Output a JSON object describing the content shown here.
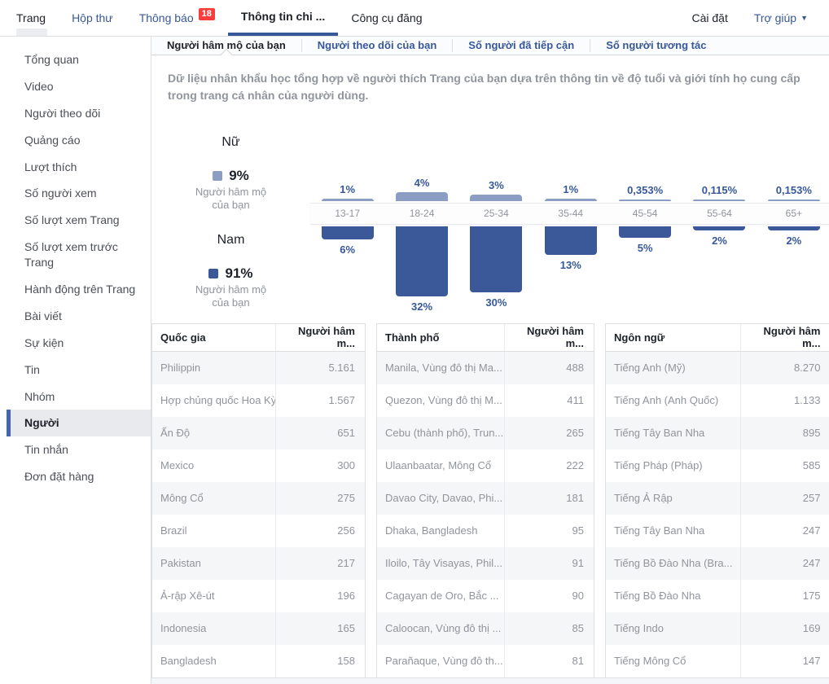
{
  "colors": {
    "accent": "#365899",
    "female_bar": "#8b9dc3",
    "male_bar": "#3b5998",
    "badge_red": "#fa3e3e",
    "active_sidebar_border": "#4267b2"
  },
  "top_nav": {
    "items": [
      {
        "id": "trang",
        "label": "Trang",
        "dark": true
      },
      {
        "id": "hop-thu",
        "label": "Hộp thư"
      },
      {
        "id": "thong-bao",
        "label": "Thông báo",
        "badge": "18"
      },
      {
        "id": "thong-tin-chi-tiet",
        "label": "Thông tin chi ...",
        "active": true
      },
      {
        "id": "cong-cu-dang",
        "label": "Công cụ đăng",
        "dark": true
      }
    ],
    "right": [
      {
        "id": "cai-dat",
        "label": "Cài đặt",
        "dark": true
      },
      {
        "id": "tro-giup",
        "label": "Trợ giúp",
        "caret": true
      }
    ]
  },
  "sidebar": {
    "items": [
      {
        "id": "tong-quan",
        "label": "Tổng quan"
      },
      {
        "id": "video",
        "label": "Video"
      },
      {
        "id": "nguoi-theo-doi",
        "label": "Người theo dõi"
      },
      {
        "id": "quang-cao",
        "label": "Quảng cáo"
      },
      {
        "id": "luot-thich",
        "label": "Lượt thích"
      },
      {
        "id": "so-nguoi-xem",
        "label": "Số người xem"
      },
      {
        "id": "so-luot-xem-trang",
        "label": "Số lượt xem Trang"
      },
      {
        "id": "so-luot-xem-truoc-trang",
        "label": "Số lượt xem trước Trang"
      },
      {
        "id": "hanh-dong-tren-trang",
        "label": "Hành động trên Trang"
      },
      {
        "id": "bai-viet",
        "label": "Bài viết"
      },
      {
        "id": "su-kien",
        "label": "Sự kiện"
      },
      {
        "id": "tin",
        "label": "Tin"
      },
      {
        "id": "nhom",
        "label": "Nhóm"
      },
      {
        "id": "nguoi",
        "label": "Người",
        "active": true
      },
      {
        "id": "tin-nhan",
        "label": "Tin nhắn"
      },
      {
        "id": "don-dat-hang",
        "label": "Đơn đặt hàng"
      }
    ]
  },
  "main_tabs": [
    {
      "id": "nguoi-ham-mo",
      "label": "Người hâm mộ của bạn",
      "active": true
    },
    {
      "id": "nguoi-theo-doi",
      "label": "Người theo dõi của bạn"
    },
    {
      "id": "da-tiep-can",
      "label": "Số người đã tiếp cận"
    },
    {
      "id": "tuong-tac",
      "label": "Số người tương tác"
    }
  ],
  "description": "Dữ liệu nhân khẩu học tổng hợp về người thích Trang của bạn dựa trên thông tin về độ tuổi và giới tính họ cung cấp trong trang cá nhân của người dùng.",
  "chart_data": {
    "type": "bar",
    "title": "",
    "categories": [
      "13-17",
      "18-24",
      "25-34",
      "35-44",
      "45-54",
      "55-64",
      "65+"
    ],
    "legend_sublabel": "Người hâm mộ của bạn",
    "series": [
      {
        "name": "Nữ",
        "total_label": "9%",
        "color": "#8b9dc3",
        "values": [
          1,
          4,
          3,
          1,
          0.353,
          0.115,
          0.153
        ],
        "labels": [
          "1%",
          "4%",
          "3%",
          "1%",
          "0,353%",
          "0,115%",
          "0,153%"
        ]
      },
      {
        "name": "Nam",
        "total_label": "91%",
        "color": "#3b5998",
        "values": [
          6,
          32,
          30,
          13,
          5,
          2,
          2
        ],
        "labels": [
          "6%",
          "32%",
          "30%",
          "13%",
          "5%",
          "2%",
          "2%"
        ]
      }
    ],
    "ylabel": "",
    "xlabel": "",
    "grid": false,
    "legend_position": "left"
  },
  "tables": [
    {
      "id": "quoc-gia",
      "title": "Quốc gia",
      "value_header": "Người hâm m...",
      "rows": [
        [
          "Philippin",
          "5.161"
        ],
        [
          "Hợp chủng quốc Hoa Kỳ",
          "1.567"
        ],
        [
          "Ấn Độ",
          "651"
        ],
        [
          "Mexico",
          "300"
        ],
        [
          "Mông Cổ",
          "275"
        ],
        [
          "Brazil",
          "256"
        ],
        [
          "Pakistan",
          "217"
        ],
        [
          "Ả-rập Xê-út",
          "196"
        ],
        [
          "Indonesia",
          "165"
        ],
        [
          "Bangladesh",
          "158"
        ]
      ]
    },
    {
      "id": "thanh-pho",
      "title": "Thành phố",
      "value_header": "Người hâm m...",
      "rows": [
        [
          "Manila, Vùng đô thị Ma...",
          "488"
        ],
        [
          "Quezon, Vùng đô thị M...",
          "411"
        ],
        [
          "Cebu (thành phố), Trun...",
          "265"
        ],
        [
          "Ulaanbaatar, Mông Cổ",
          "222"
        ],
        [
          "Davao City, Davao, Phi...",
          "181"
        ],
        [
          "Dhaka, Bangladesh",
          "95"
        ],
        [
          "Iloilo, Tây Visayas, Phil...",
          "91"
        ],
        [
          "Cagayan de Oro, Bắc ...",
          "90"
        ],
        [
          "Caloocan, Vùng đô thị ...",
          "85"
        ],
        [
          "Parañaque, Vùng đô th...",
          "81"
        ]
      ]
    },
    {
      "id": "ngon-ngu",
      "title": "Ngôn ngữ",
      "value_header": "Người hâm m...",
      "rows": [
        [
          "Tiếng Anh (Mỹ)",
          "8.270"
        ],
        [
          "Tiếng Anh (Anh Quốc)",
          "1.133"
        ],
        [
          "Tiếng Tây Ban Nha",
          "895"
        ],
        [
          "Tiếng Pháp (Pháp)",
          "585"
        ],
        [
          "Tiếng Ả Rập",
          "257"
        ],
        [
          "Tiếng Tây Ban Nha",
          "247"
        ],
        [
          "Tiếng Bồ Đào Nha (Bra...",
          "247"
        ],
        [
          "Tiếng Bồ Đào Nha",
          "175"
        ],
        [
          "Tiếng Indo",
          "169"
        ],
        [
          "Tiếng Mông Cổ",
          "147"
        ]
      ]
    }
  ]
}
